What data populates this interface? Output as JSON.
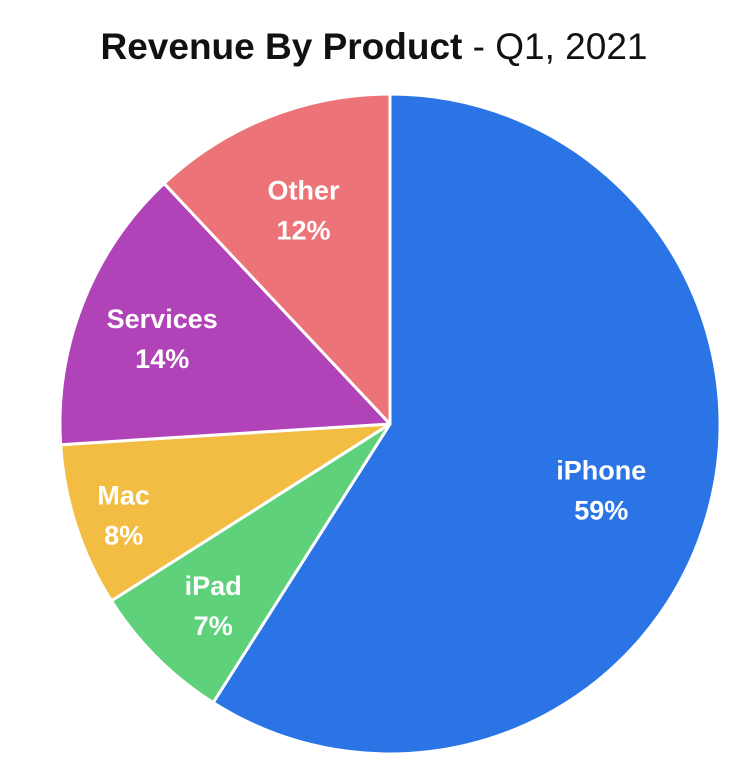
{
  "chart_data": {
    "type": "pie",
    "title": "Revenue By Product",
    "subtitle": "- Q1, 2021",
    "slices": [
      {
        "name": "iPhone",
        "value": 59,
        "label": "59%",
        "color": "#2b74e6"
      },
      {
        "name": "iPad",
        "value": 7,
        "label": "7%",
        "color": "#5fd17a"
      },
      {
        "name": "Mac",
        "value": 8,
        "label": "8%",
        "color": "#f3bd43"
      },
      {
        "name": "Services",
        "value": 14,
        "label": "14%",
        "color": "#b043b8"
      },
      {
        "name": "Other",
        "value": 12,
        "label": "12%",
        "color": "#ec7377"
      }
    ],
    "start": "12 o'clock",
    "direction": "clockwise",
    "legend": "none"
  }
}
